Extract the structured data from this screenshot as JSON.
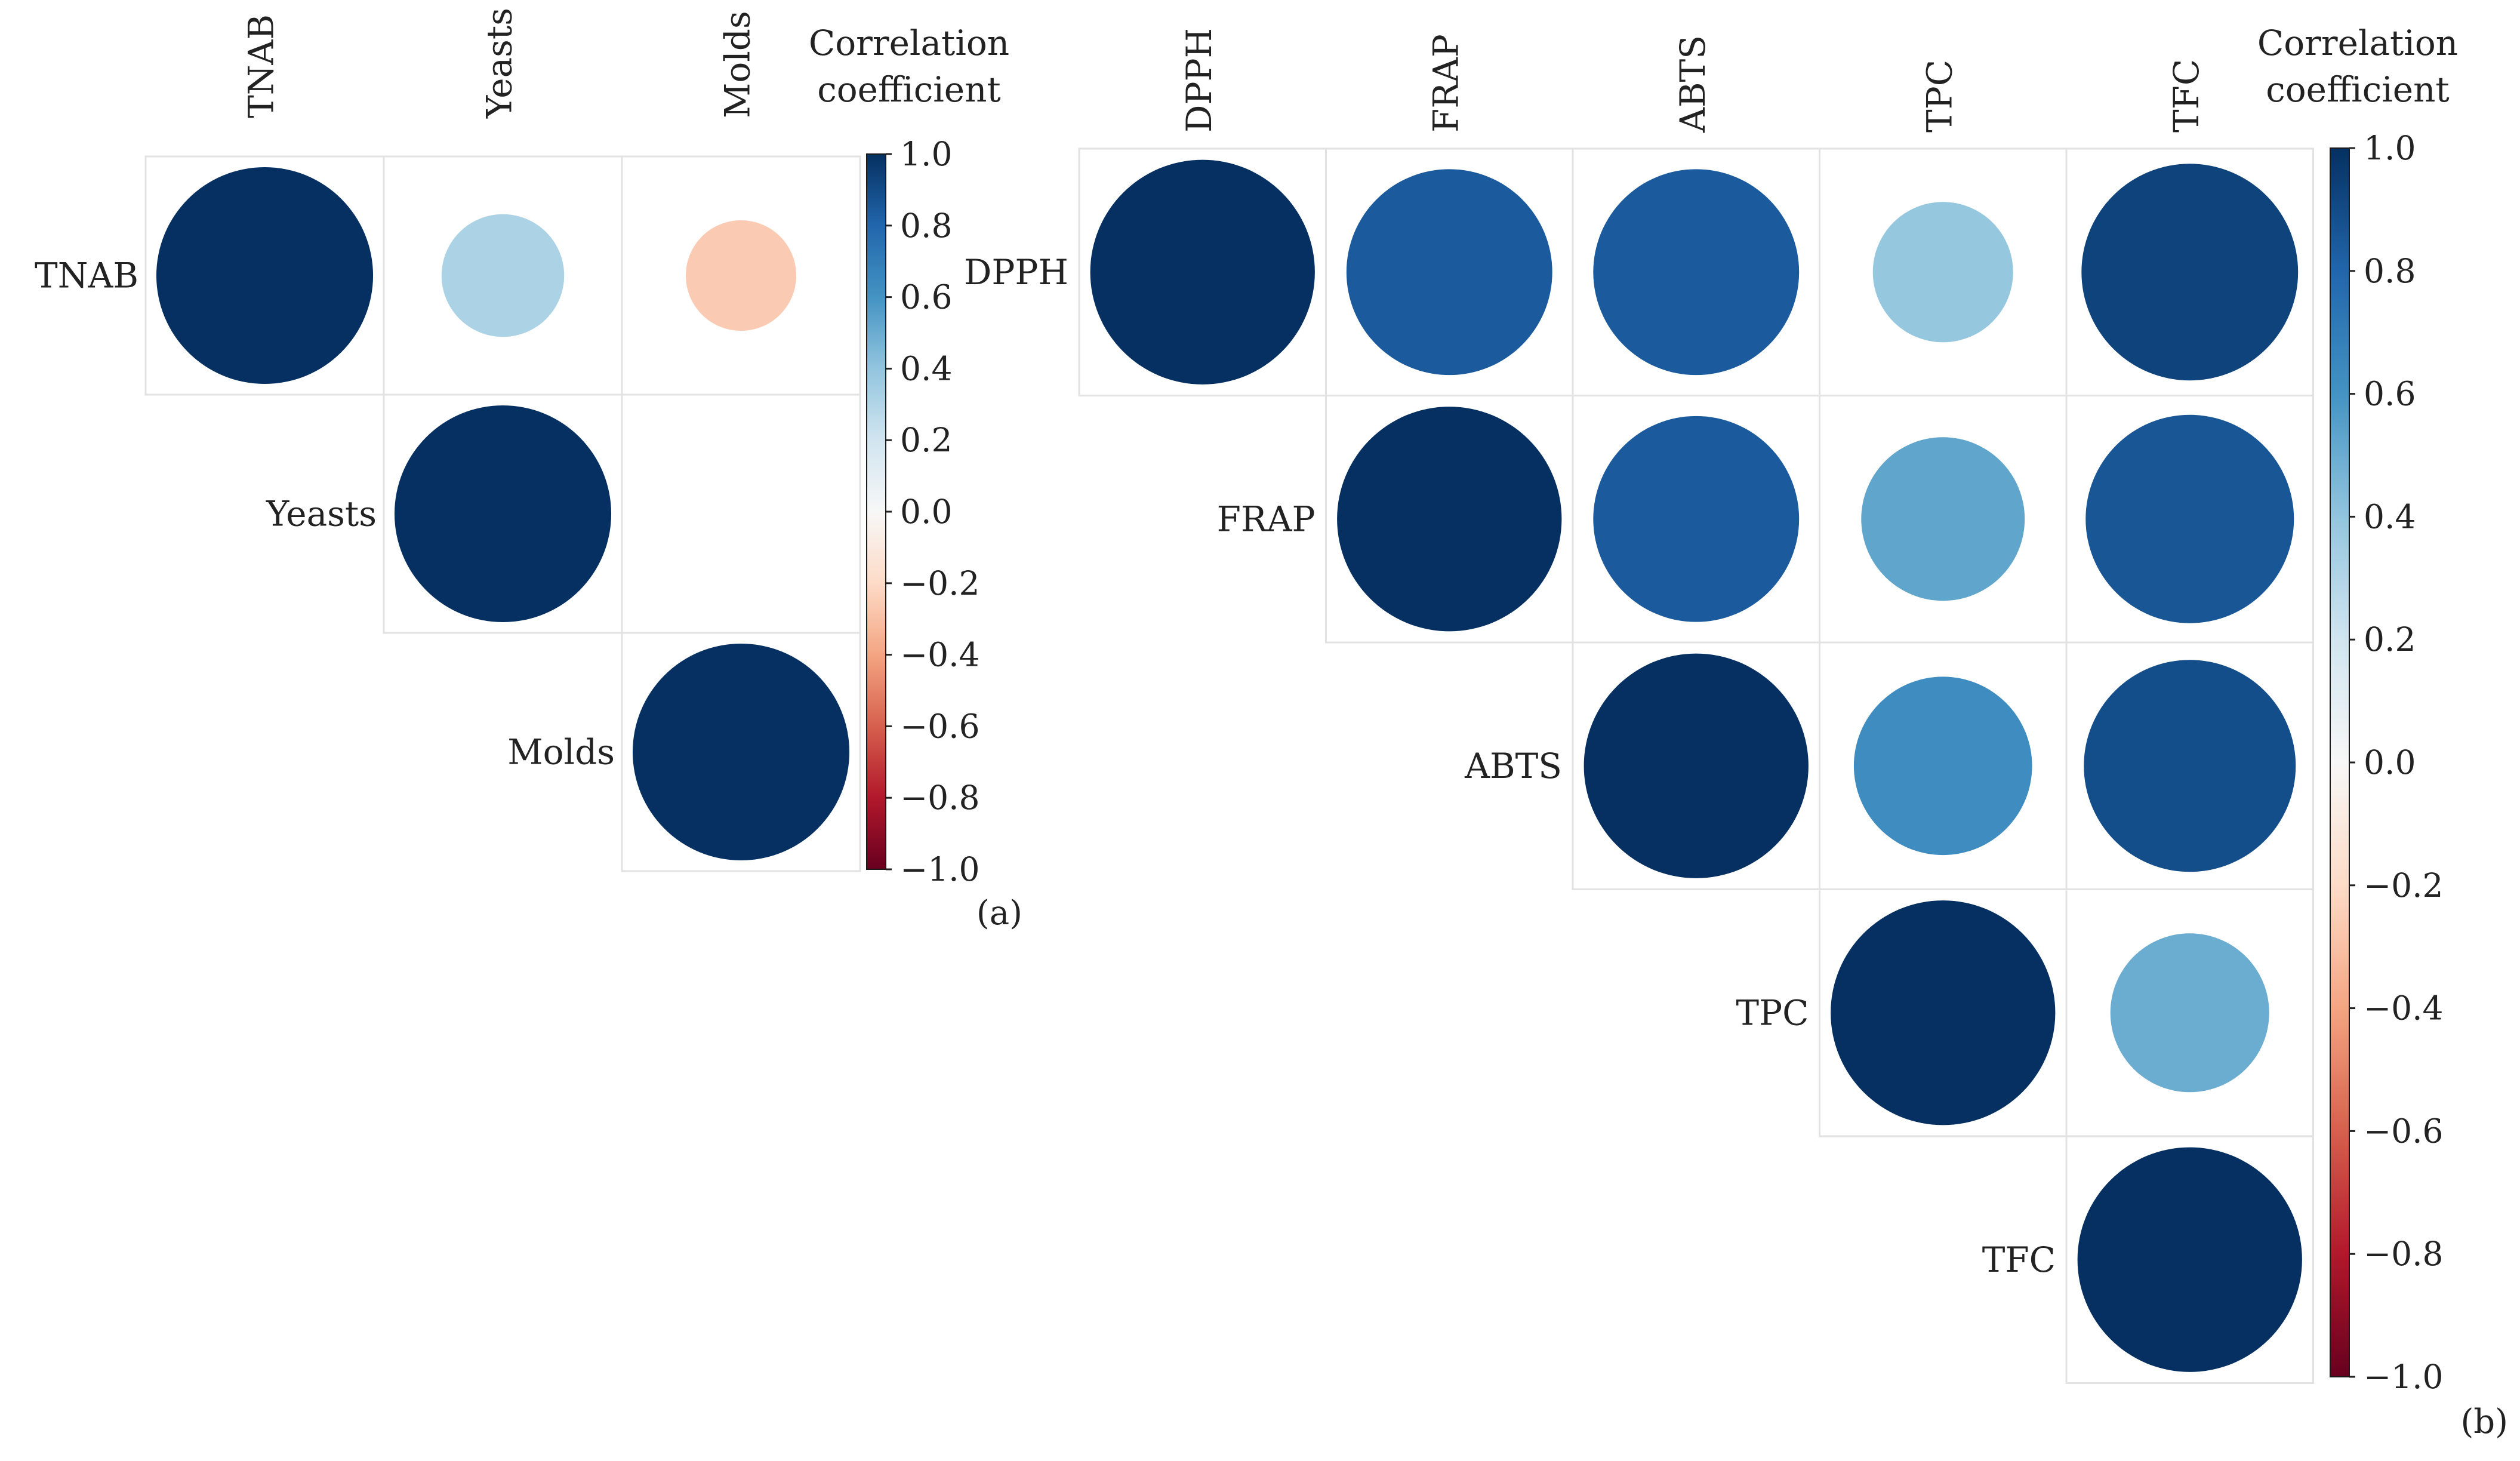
{
  "chart_data": [
    {
      "type": "heatmap",
      "style": "circle-correlation-matrix",
      "panel_label": "(a)",
      "variables": [
        "TNAB",
        "Yeasts",
        "Molds"
      ],
      "matrix_shape": "upper-triangle",
      "values": [
        [
          1.0,
          0.32,
          -0.26
        ],
        [
          null,
          1.0,
          0.0
        ],
        [
          null,
          null,
          1.0
        ]
      ],
      "colorbar": {
        "title_lines": [
          "Correlation",
          "coefficient"
        ],
        "range": [
          -1.0,
          1.0
        ],
        "ticks": [
          "1.0",
          "0.8",
          "0.6",
          "0.4",
          "0.2",
          "0.0",
          "−0.2",
          "−0.4",
          "−0.6",
          "−0.8",
          "−1.0"
        ],
        "colormap": "RdBu"
      }
    },
    {
      "type": "heatmap",
      "style": "circle-correlation-matrix",
      "panel_label": "(b)",
      "variables": [
        "DPPH",
        "FRAP",
        "ABTS",
        "TPC",
        "TFC"
      ],
      "matrix_shape": "upper-triangle",
      "values": [
        [
          1.0,
          0.84,
          0.84,
          0.39,
          0.93
        ],
        [
          null,
          1.0,
          0.84,
          0.53,
          0.86
        ],
        [
          null,
          null,
          1.0,
          0.63,
          0.89
        ],
        [
          null,
          null,
          null,
          1.0,
          0.5
        ],
        [
          null,
          null,
          null,
          null,
          1.0
        ]
      ],
      "colorbar": {
        "title_lines": [
          "Correlation",
          "coefficient"
        ],
        "range": [
          -1.0,
          1.0
        ],
        "ticks": [
          "1.0",
          "0.8",
          "0.6",
          "0.4",
          "0.2",
          "0.0",
          "−0.2",
          "−0.4",
          "−0.6",
          "−0.8",
          "−1.0"
        ],
        "colormap": "RdBu"
      }
    }
  ]
}
